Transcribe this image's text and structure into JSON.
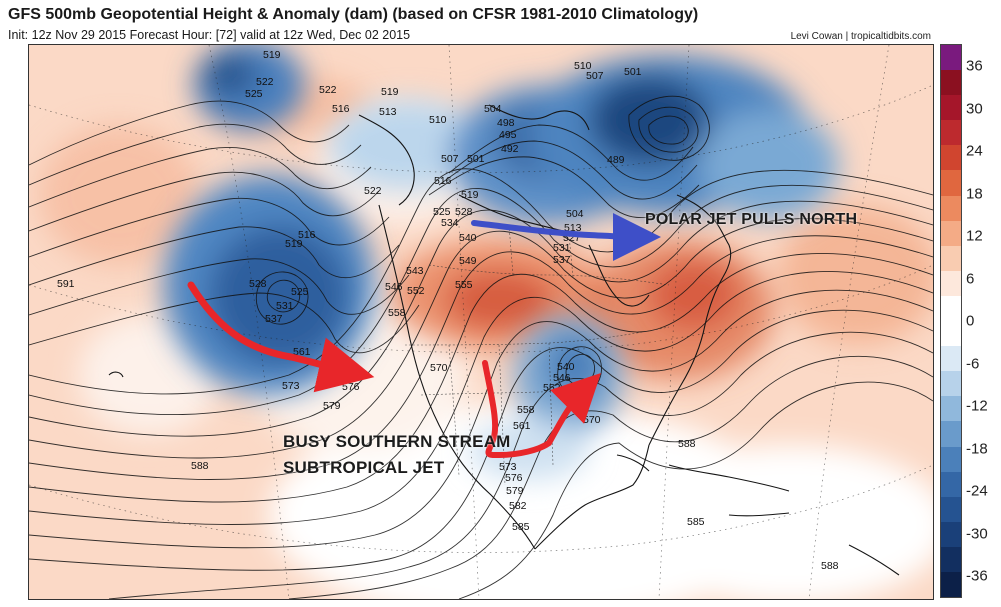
{
  "header": {
    "title": "GFS 500mb Geopotential Height & Anomaly (dam) (based on CFSR 1981-2010 Climatology)",
    "subtitle": "Init: 12z Nov 29 2015   Forecast Hour: [72]   valid at 12z Wed, Dec 02 2015",
    "credit": "Levi Cowan | tropicaltidbits.com"
  },
  "annotations": {
    "polar_jet": "POLAR JET PULLS NORTH",
    "southern_line1": "BUSY SOUTHERN STREAM",
    "southern_line2": "SUBTROPICAL JET"
  },
  "colorbar": {
    "labels": [
      "36",
      "30",
      "24",
      "18",
      "12",
      "6",
      "0",
      "-6",
      "-12",
      "-18",
      "-24",
      "-30",
      "-36"
    ],
    "colors": [
      "#7a1a7e",
      "#8b1020",
      "#a5162a",
      "#bd2a2e",
      "#d0452f",
      "#e0673f",
      "#ec8a5f",
      "#f4ab86",
      "#f9ccb1",
      "#fde8dc",
      "#ffffff",
      "#ffffff",
      "#dbe9f5",
      "#b7d2ea",
      "#90b8dc",
      "#6a9bcb",
      "#4b80ba",
      "#3467a6",
      "#255391",
      "#1a4079",
      "#122f60",
      "#0c2048"
    ]
  },
  "contour_labels": [
    {
      "text": "519"
    },
    {
      "text": "522"
    },
    {
      "text": "525"
    },
    {
      "text": "522"
    },
    {
      "text": "516"
    },
    {
      "text": "519"
    },
    {
      "text": "513"
    },
    {
      "text": "510"
    },
    {
      "text": "507"
    },
    {
      "text": "501"
    },
    {
      "text": "504"
    },
    {
      "text": "498"
    },
    {
      "text": "495"
    },
    {
      "text": "492"
    },
    {
      "text": "510"
    },
    {
      "text": "507"
    },
    {
      "text": "501"
    },
    {
      "text": "489"
    },
    {
      "text": "516"
    },
    {
      "text": "522"
    },
    {
      "text": "519"
    },
    {
      "text": "525"
    },
    {
      "text": "528"
    },
    {
      "text": "534"
    },
    {
      "text": "540"
    },
    {
      "text": "504"
    },
    {
      "text": "513"
    },
    {
      "text": "527"
    },
    {
      "text": "531"
    },
    {
      "text": "537"
    },
    {
      "text": "543"
    },
    {
      "text": "549"
    },
    {
      "text": "546"
    },
    {
      "text": "552"
    },
    {
      "text": "555"
    },
    {
      "text": "558"
    },
    {
      "text": "516"
    },
    {
      "text": "519"
    },
    {
      "text": "528"
    },
    {
      "text": "525"
    },
    {
      "text": "531"
    },
    {
      "text": "537"
    },
    {
      "text": "561"
    },
    {
      "text": "573"
    },
    {
      "text": "576"
    },
    {
      "text": "579"
    },
    {
      "text": "570"
    },
    {
      "text": "591"
    },
    {
      "text": "540"
    },
    {
      "text": "546"
    },
    {
      "text": "552"
    },
    {
      "text": "558"
    },
    {
      "text": "561"
    },
    {
      "text": "570"
    },
    {
      "text": "573"
    },
    {
      "text": "576"
    },
    {
      "text": "579"
    },
    {
      "text": "582"
    },
    {
      "text": "585"
    },
    {
      "text": "588"
    },
    {
      "text": "588"
    },
    {
      "text": "585"
    },
    {
      "text": "588"
    }
  ]
}
